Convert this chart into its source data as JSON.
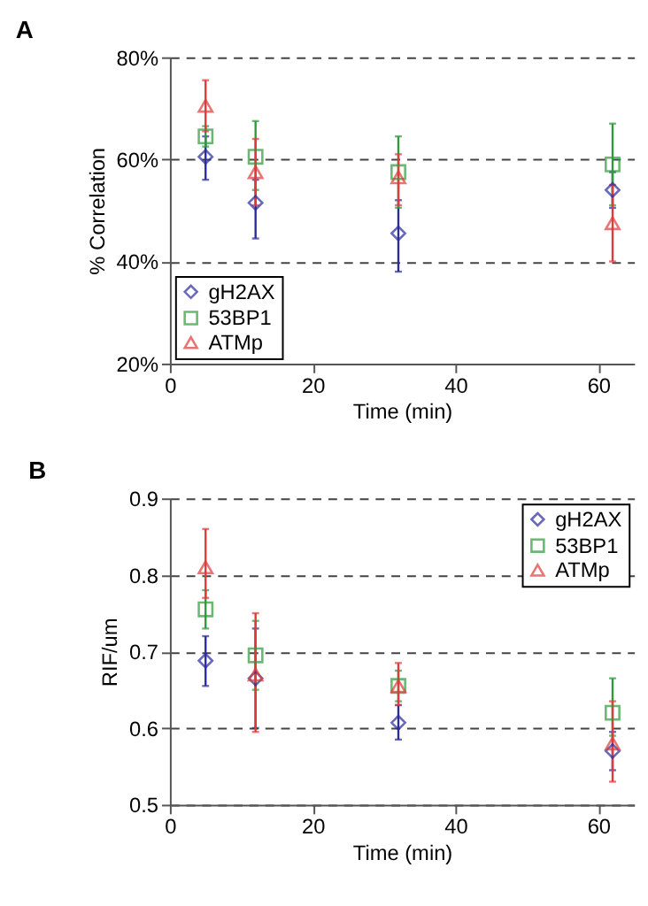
{
  "chart_data": [
    {
      "type": "scatter",
      "title": "A",
      "xlabel": "Time (min)",
      "ylabel": "% Correlation",
      "x": [
        5,
        12,
        32,
        62
      ],
      "xlim": [
        0,
        65
      ],
      "xticks": [
        0,
        20,
        40,
        60
      ],
      "ylim": [
        20,
        80
      ],
      "yticks": [
        {
          "value": 20,
          "label": "20%"
        },
        {
          "value": 40,
          "label": "40%"
        },
        {
          "value": 60,
          "label": "60%"
        },
        {
          "value": 80,
          "label": "80%"
        }
      ],
      "grid": "y",
      "legend": "bottom left",
      "series": [
        {
          "name": "gH2AX",
          "color": "#2b2b9e",
          "marker": "diamond",
          "values": [
            60.5,
            51.5,
            45.5,
            54
          ],
          "errors": [
            [
              56,
              64.5
            ],
            [
              44.5,
              56
            ],
            [
              38,
              52
            ],
            [
              50.5,
              57.5
            ]
          ]
        },
        {
          "name": "53BP1",
          "color": "#2f9a3a",
          "marker": "square",
          "values": [
            64.5,
            60.5,
            57.5,
            59
          ],
          "errors": [
            [
              62.5,
              66.5
            ],
            [
              54,
              67.5
            ],
            [
              50.5,
              64.5
            ],
            [
              51,
              67
            ]
          ]
        },
        {
          "name": "ATMp",
          "color": "#e03a3a",
          "marker": "triangle",
          "values": [
            70.5,
            57.5,
            56.5,
            47.5
          ],
          "errors": [
            [
              65.5,
              75.5
            ],
            [
              51,
              64
            ],
            [
              51,
              61
            ],
            [
              40,
              55
            ]
          ]
        }
      ]
    },
    {
      "type": "scatter",
      "title": "B",
      "xlabel": "Time (min)",
      "ylabel": "RIF/um",
      "x": [
        5,
        12,
        32,
        62
      ],
      "xlim": [
        0,
        65
      ],
      "xticks": [
        0,
        20,
        40,
        60
      ],
      "ylim": [
        0.5,
        0.9
      ],
      "yticks": [
        0.5,
        0.6,
        0.7,
        0.8,
        0.9
      ],
      "grid": "y",
      "legend": "top right",
      "series": [
        {
          "name": "gH2AX",
          "color": "#2b2b9e",
          "marker": "diamond",
          "values": [
            0.688,
            0.665,
            0.607,
            0.57
          ],
          "errors": [
            [
              0.655,
              0.72
            ],
            [
              0.6,
              0.73
            ],
            [
              0.585,
              0.63
            ],
            [
              0.545,
              0.595
            ]
          ]
        },
        {
          "name": "53BP1",
          "color": "#2f9a3a",
          "marker": "square",
          "values": [
            0.755,
            0.695,
            0.655,
            0.62
          ],
          "errors": [
            [
              0.73,
              0.78
            ],
            [
              0.65,
              0.74
            ],
            [
              0.635,
              0.675
            ],
            [
              0.59,
              0.665
            ]
          ]
        },
        {
          "name": "ATMp",
          "color": "#e03a3a",
          "marker": "triangle",
          "values": [
            0.81,
            0.67,
            0.655,
            0.58
          ],
          "errors": [
            [
              0.77,
              0.86
            ],
            [
              0.595,
              0.75
            ],
            [
              0.63,
              0.685
            ],
            [
              0.53,
              0.635
            ]
          ]
        }
      ]
    }
  ]
}
